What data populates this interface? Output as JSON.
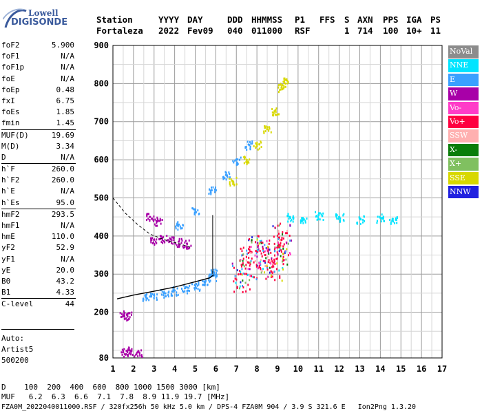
{
  "logo": {
    "line1": "Lowell",
    "line2": "DIGISONDE"
  },
  "header": {
    "labels": [
      "Station",
      "YYYY",
      "DAY",
      "DDD",
      "HHMMSS",
      "P1",
      "FFS",
      "S",
      "AXN",
      "PPS",
      "IGA",
      "PS"
    ],
    "values": [
      "Fortaleza",
      "2022",
      "Fev09",
      "040",
      "011000",
      "RSF",
      "",
      "1",
      "714",
      "100",
      "10+",
      "11"
    ]
  },
  "params": [
    {
      "k": "foF2",
      "v": "5.900"
    },
    {
      "k": "foF1",
      "v": "N/A"
    },
    {
      "k": "foF1p",
      "v": "N/A"
    },
    {
      "k": "foE",
      "v": "N/A"
    },
    {
      "k": "foEp",
      "v": "0.48"
    },
    {
      "k": "fxI",
      "v": "6.75"
    },
    {
      "k": "foEs",
      "v": "1.85"
    },
    {
      "k": "fmin",
      "v": "1.45"
    },
    {
      "k": "MUF(D)",
      "v": "19.69",
      "sep": true
    },
    {
      "k": "M(D)",
      "v": "3.34"
    },
    {
      "k": "D",
      "v": "N/A"
    },
    {
      "k": "h`F",
      "v": "260.0",
      "sep": true
    },
    {
      "k": "h`F2",
      "v": "260.0"
    },
    {
      "k": "h`E",
      "v": "N/A"
    },
    {
      "k": "h`Es",
      "v": "95.0"
    },
    {
      "k": "hmF2",
      "v": "293.5",
      "sep": true
    },
    {
      "k": "hmF1",
      "v": "N/A"
    },
    {
      "k": "hmE",
      "v": "110.0"
    },
    {
      "k": "yF2",
      "v": "52.9"
    },
    {
      "k": "yF1",
      "v": "N/A"
    },
    {
      "k": "yE",
      "v": "20.0"
    },
    {
      "k": "B0",
      "v": "43.2"
    },
    {
      "k": "B1",
      "v": "4.33"
    },
    {
      "k": "C-level",
      "v": "44",
      "sep": true
    }
  ],
  "auto": [
    "Auto:",
    "Artist5",
    "500200"
  ],
  "legend": [
    {
      "label": "NoVal",
      "color": "#8c8c8c"
    },
    {
      "label": "NNE",
      "color": "#00e4ff"
    },
    {
      "label": "E",
      "color": "#3aa0ff"
    },
    {
      "label": "W",
      "color": "#a800a8"
    },
    {
      "label": "Vo-",
      "color": "#ff3cc8"
    },
    {
      "label": "Vo+",
      "color": "#ff0040"
    },
    {
      "label": "SSW",
      "color": "#ffb0b0"
    },
    {
      "label": "X-",
      "color": "#0a7d0a"
    },
    {
      "label": "X+",
      "color": "#80c060"
    },
    {
      "label": "SSE",
      "color": "#d8d800"
    },
    {
      "label": "NNW",
      "color": "#2020e0"
    }
  ],
  "bottom": {
    "d_row": "D    100  200  400  600  800 1000 1500 3000 [km]",
    "muf_row": "MUF   6.2  6.3  6.6  7.1  7.8  8.9 11.9 19.7 [MHz]",
    "footer": "FZA0M_2022040011000.RSF / 320fx256h 50 kHz 5.0 km / DPS-4 FZA0M 904 / 3.9 S 321.6 E   Ion2Png 1.3.20"
  },
  "chart_data": {
    "type": "scatter",
    "title": "",
    "xlabel": "",
    "ylabel": "",
    "xlim": [
      1,
      17
    ],
    "ylim": [
      80,
      900
    ],
    "x_ticks": [
      1,
      2,
      3,
      4,
      5,
      6,
      7,
      8,
      9,
      10,
      11,
      12,
      13,
      14,
      15,
      16,
      17
    ],
    "y_ticks": [
      80,
      200,
      300,
      400,
      500,
      600,
      700,
      800,
      900
    ],
    "grid": true,
    "traces": [
      {
        "name": "oblique_trace",
        "color": "SSE",
        "points": [
          [
            6.8,
            545
          ],
          [
            7.5,
            600
          ],
          [
            8.0,
            640
          ],
          [
            8.5,
            680
          ],
          [
            8.9,
            730
          ],
          [
            9.2,
            790
          ],
          [
            9.3,
            805
          ]
        ]
      },
      {
        "name": "oblique_trace_e",
        "color": "E",
        "points": [
          [
            4.2,
            430
          ],
          [
            5.0,
            470
          ],
          [
            5.8,
            520
          ],
          [
            6.5,
            560
          ],
          [
            7.0,
            600
          ],
          [
            7.6,
            640
          ]
        ]
      },
      {
        "name": "f2_trace",
        "color": "E",
        "points": [
          [
            2.6,
            240
          ],
          [
            3.0,
            245
          ],
          [
            3.5,
            250
          ],
          [
            4.0,
            257
          ],
          [
            4.5,
            263
          ],
          [
            5.0,
            270
          ],
          [
            5.5,
            282
          ],
          [
            5.8,
            295
          ],
          [
            5.9,
            305
          ]
        ]
      },
      {
        "name": "spread_f_cluster",
        "color": "Vo+",
        "points": [
          [
            7.2,
            300
          ],
          [
            7.6,
            330
          ],
          [
            8.0,
            360
          ],
          [
            8.4,
            350
          ],
          [
            8.8,
            330
          ],
          [
            9.0,
            370
          ],
          [
            9.2,
            390
          ]
        ]
      },
      {
        "name": "w_cluster",
        "color": "W",
        "points": [
          [
            3.0,
            390
          ],
          [
            3.4,
            395
          ],
          [
            3.8,
            392
          ],
          [
            4.2,
            385
          ],
          [
            4.6,
            380
          ],
          [
            2.8,
            450
          ],
          [
            3.2,
            440
          ]
        ]
      },
      {
        "name": "extended_echoes",
        "color": "NNE",
        "points": [
          [
            9.6,
            450
          ],
          [
            10.2,
            440
          ],
          [
            11.0,
            455
          ],
          [
            12.0,
            450
          ],
          [
            13.0,
            445
          ],
          [
            14.0,
            448
          ],
          [
            14.6,
            445
          ]
        ]
      },
      {
        "name": "es_trace",
        "color": "W",
        "points": [
          [
            1.5,
            95
          ],
          [
            1.8,
            100
          ],
          [
            2.2,
            95
          ],
          [
            1.5,
            190
          ],
          [
            1.7,
            195
          ]
        ]
      }
    ],
    "profile_curve": [
      [
        1.2,
        235
      ],
      [
        2.0,
        245
      ],
      [
        3.0,
        255
      ],
      [
        4.0,
        266
      ],
      [
        5.0,
        280
      ],
      [
        5.7,
        290
      ],
      [
        5.9,
        298
      ]
    ],
    "dashed_curve": [
      [
        1.0,
        500
      ],
      [
        1.6,
        460
      ],
      [
        2.2,
        430
      ],
      [
        2.8,
        405
      ],
      [
        3.5,
        390
      ],
      [
        4.2,
        380
      ],
      [
        4.8,
        370
      ]
    ]
  }
}
